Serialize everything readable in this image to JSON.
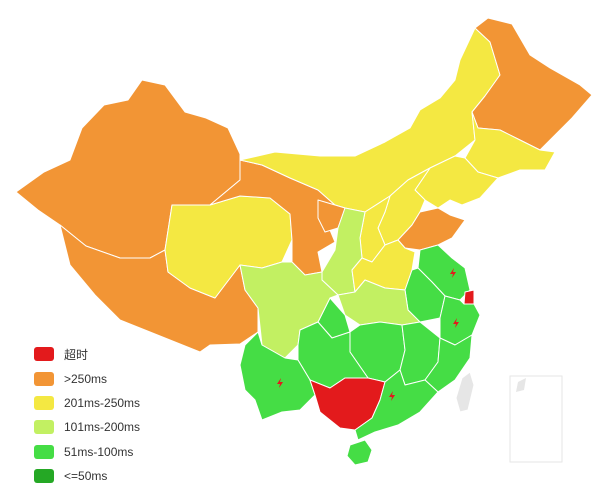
{
  "colors": {
    "timeout": "#e31a1c",
    "gt250": "#f29535",
    "r201_250": "#f4e842",
    "r101_200": "#c2f062",
    "r51_100": "#45dd45",
    "le50": "#25a825",
    "taiwan": "#e6e6e6"
  },
  "legend": [
    {
      "label": "超时",
      "color": "#e31a1c"
    },
    {
      "label": ">250ms",
      "color": "#f29535"
    },
    {
      "label": "201ms-250ms",
      "color": "#f4e842"
    },
    {
      "label": "101ms-200ms",
      "color": "#c2f062"
    },
    {
      "label": "51ms-100ms",
      "color": "#45dd45"
    },
    {
      "label": "<=50ms",
      "color": "#25a825"
    }
  ],
  "markers": [
    {
      "name": "zhejiang-marker",
      "icon": "lightning-icon"
    },
    {
      "name": "shanghai-marker",
      "icon": "lightning-icon"
    },
    {
      "name": "fujian-marker",
      "icon": "lightning-icon"
    },
    {
      "name": "guangdong-marker",
      "icon": "lightning-icon"
    },
    {
      "name": "yunnan-marker",
      "icon": "lightning-icon"
    }
  ]
}
